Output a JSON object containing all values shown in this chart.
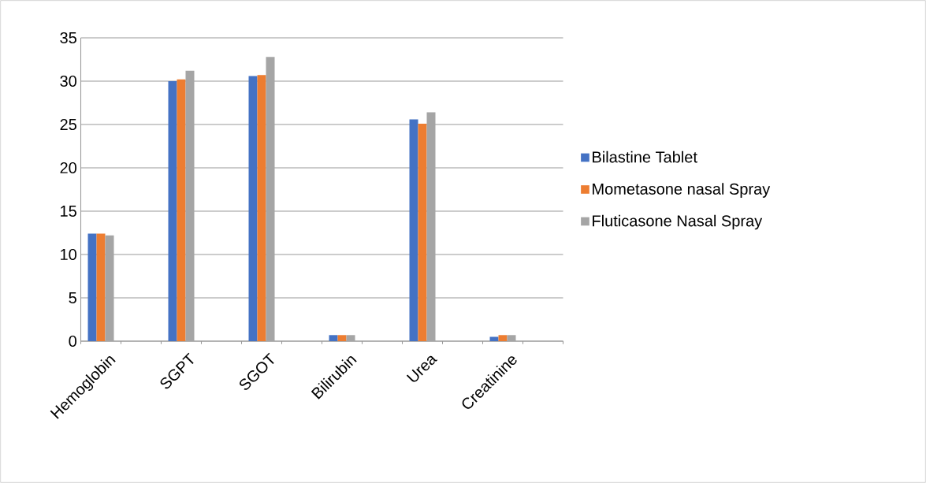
{
  "chart_data": {
    "type": "bar",
    "categories": [
      "Hemoglobin",
      null,
      "SGPT",
      null,
      "SGOT",
      null,
      "Bilirubin",
      null,
      "Urea",
      null,
      "Creatinine",
      null
    ],
    "series": [
      {
        "name": "Bilastine Tablet",
        "color": "#4472c4",
        "values": [
          12.4,
          null,
          30.0,
          null,
          30.6,
          null,
          0.7,
          null,
          25.6,
          null,
          0.5,
          null
        ]
      },
      {
        "name": "Mometasone nasal Spray",
        "color": "#ed7d31",
        "values": [
          12.4,
          null,
          30.2,
          null,
          30.7,
          null,
          0.7,
          null,
          25.1,
          null,
          0.7,
          null
        ]
      },
      {
        "name": "Fluticasone Nasal Spray",
        "color": "#a5a5a5",
        "values": [
          12.2,
          null,
          31.2,
          null,
          32.8,
          null,
          0.7,
          null,
          26.4,
          null,
          0.7,
          null
        ]
      }
    ],
    "ylim": [
      0,
      35
    ],
    "yticks": [
      0,
      5,
      10,
      15,
      20,
      25,
      30,
      35
    ],
    "grid": "y",
    "legend": "right"
  }
}
